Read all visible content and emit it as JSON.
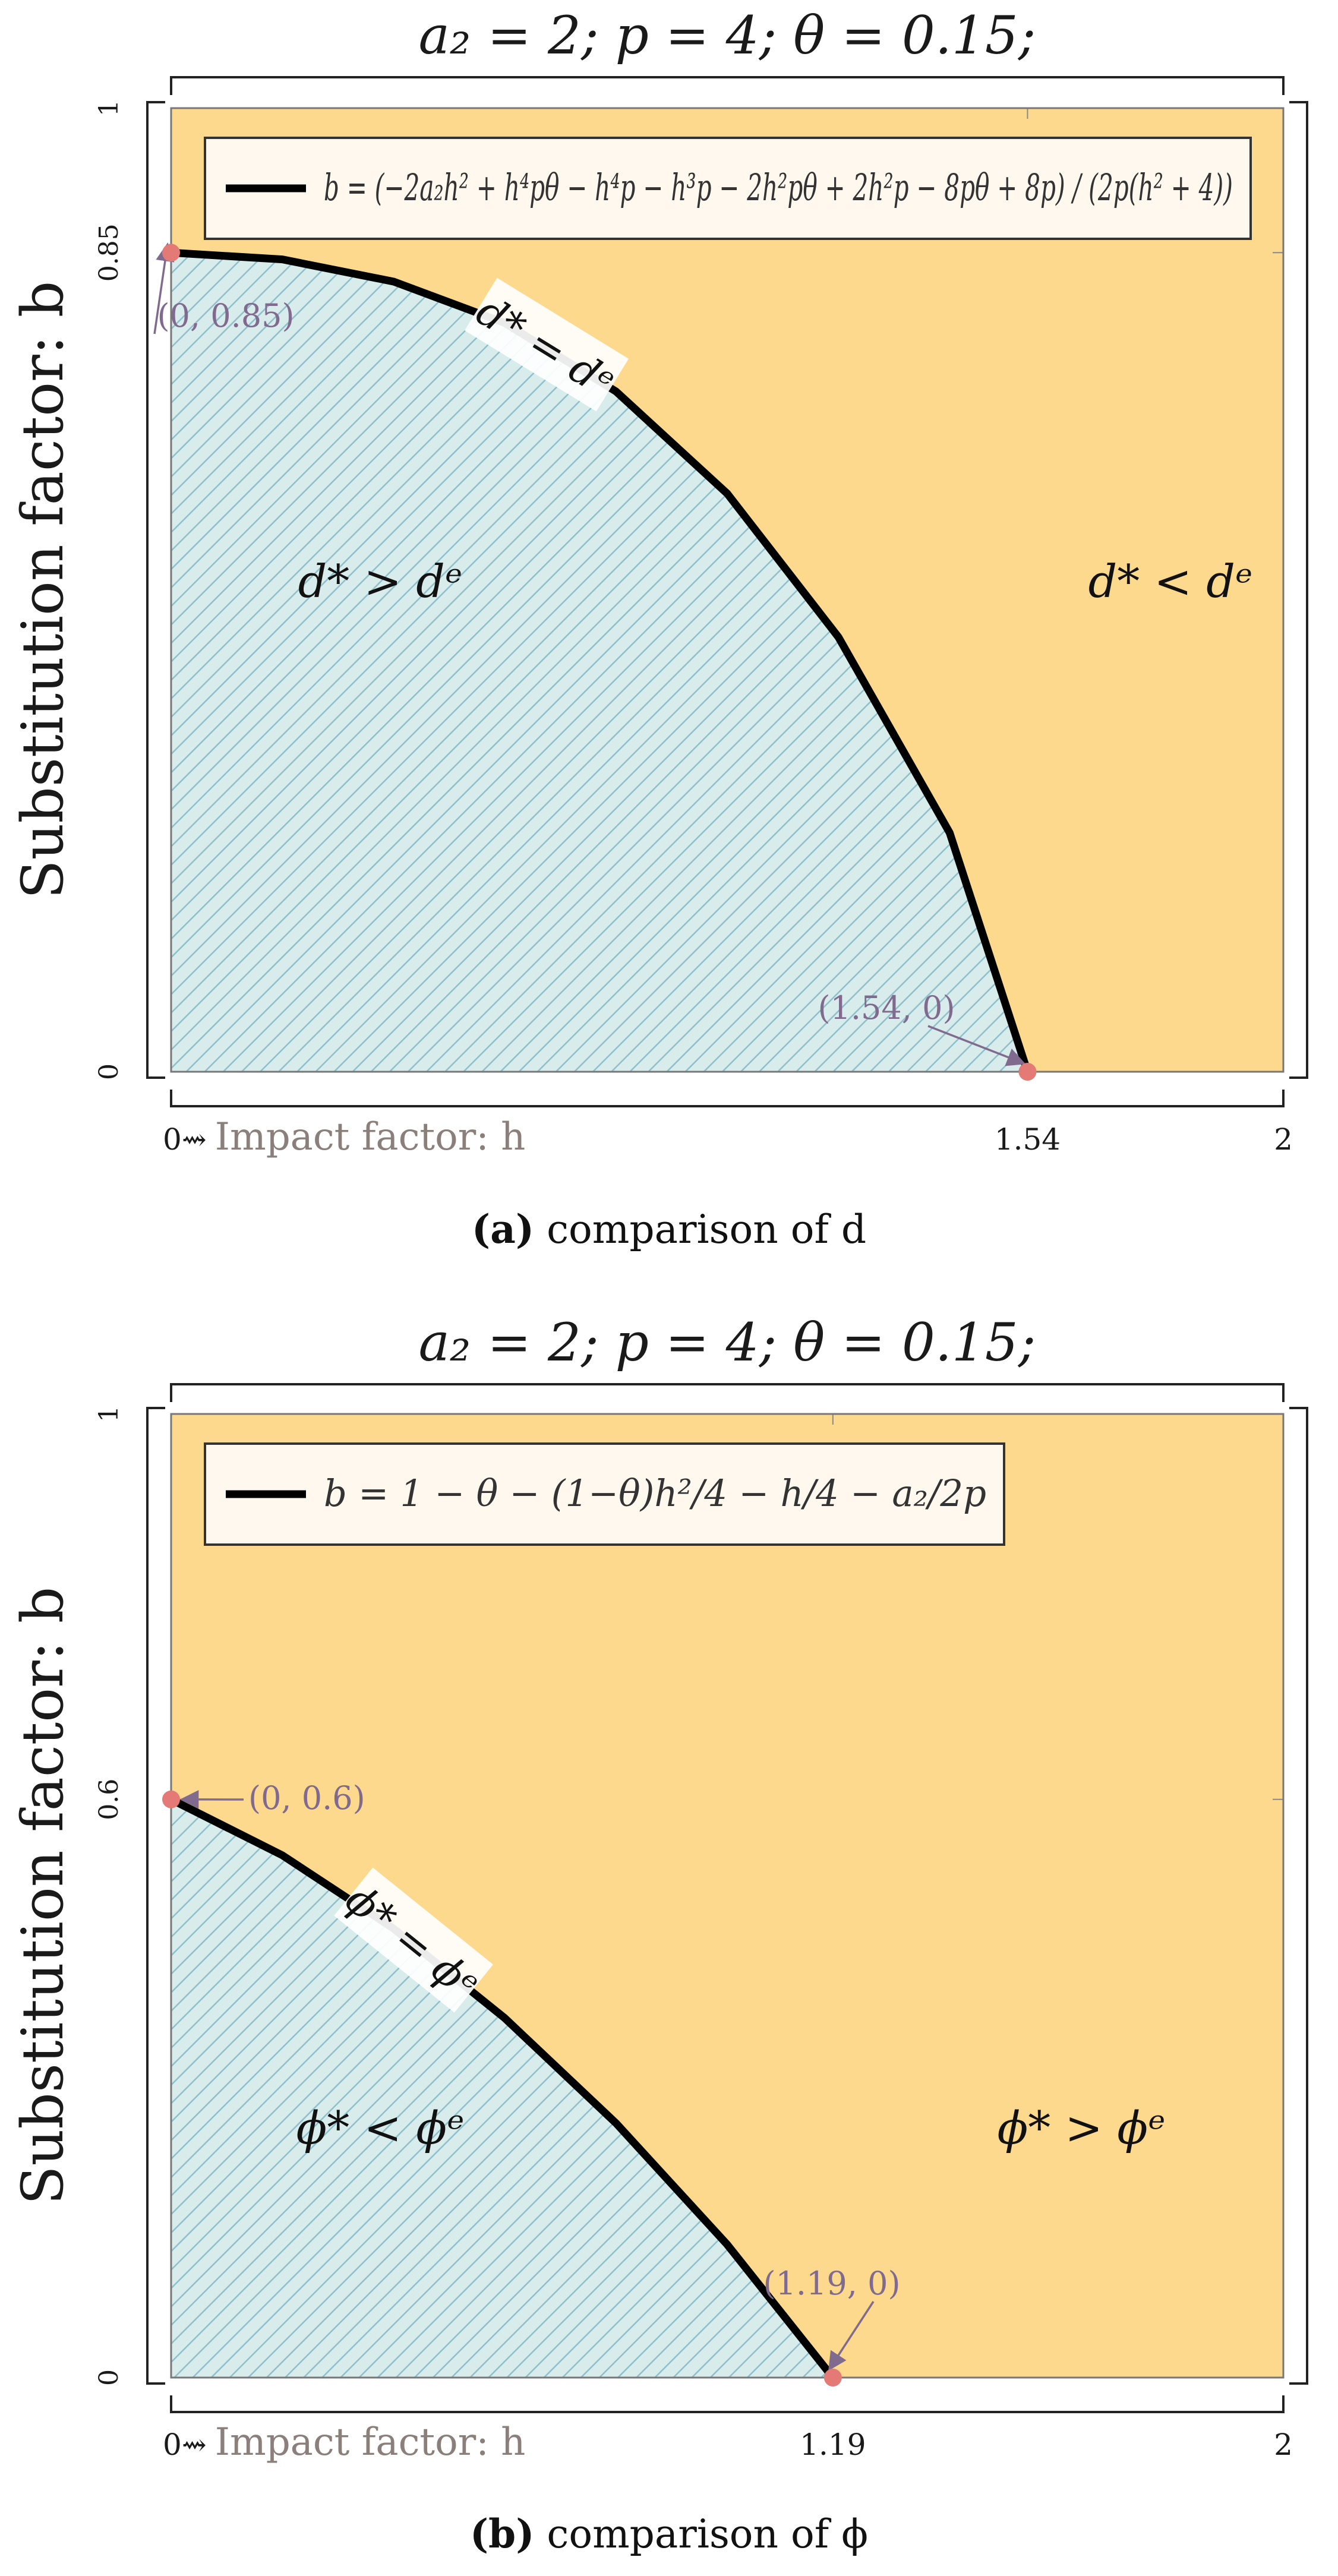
{
  "chart_data": [
    {
      "type": "area",
      "title": "a₂ = 2; p = 4; θ = 0.15;",
      "xlabel": "Impact factor: h",
      "xlabel_prefix": "0⇝",
      "ylabel": "Substitution factor: b",
      "xlim": [
        0,
        2
      ],
      "ylim": [
        0,
        1
      ],
      "x_ticks": [
        "0",
        "1.54",
        "2"
      ],
      "y_ticks": [
        "0",
        "0.85",
        "1"
      ],
      "legend": "b = (−2a₂h² + h⁴pθ − h⁴p − h³p − 2h²pθ + 2h²p − 8pθ + 8p) / (2p(h² + 4))",
      "series": [
        {
          "name": "b",
          "x": [
            0,
            0.2,
            0.4,
            0.6,
            0.8,
            1.0,
            1.2,
            1.4,
            1.54
          ],
          "values": [
            0.85,
            0.843,
            0.82,
            0.777,
            0.706,
            0.6,
            0.451,
            0.248,
            0
          ]
        }
      ],
      "points": [
        {
          "label": "(0, 0.85)",
          "x": 0,
          "y": 0.85
        },
        {
          "label": "(1.54, 0)",
          "x": 1.54,
          "y": 0
        }
      ],
      "curve_label": "d* = dᵉ",
      "regions": {
        "below": "d* > dᵉ",
        "above": "d* < dᵉ"
      },
      "caption_letter": "(a)",
      "caption_text": " comparison of d",
      "colors": {
        "above": "#fcd98c",
        "below": "#d8ecec",
        "hatch": "#8fbfcb",
        "curve": "#000000",
        "point": "#e47a76"
      }
    },
    {
      "type": "area",
      "title": "a₂ = 2; p = 4; θ = 0.15;",
      "xlabel": "Impact factor: h",
      "xlabel_prefix": "0⇝",
      "ylabel": "Substitution factor: b",
      "xlim": [
        0,
        2
      ],
      "ylim": [
        0,
        1
      ],
      "x_ticks": [
        "0",
        "1.19",
        "2"
      ],
      "y_ticks": [
        "0",
        "0.6",
        "1"
      ],
      "legend": "b = 1 − θ − (1−θ)h²/4 − h/4 − a₂/2p",
      "series": [
        {
          "name": "b",
          "x": [
            0,
            0.2,
            0.4,
            0.6,
            0.8,
            1.0,
            1.19
          ],
          "values": [
            0.6,
            0.542,
            0.466,
            0.373,
            0.264,
            0.138,
            0
          ]
        }
      ],
      "points": [
        {
          "label": "(0, 0.6)",
          "x": 0,
          "y": 0.6
        },
        {
          "label": "(1.19, 0)",
          "x": 1.19,
          "y": 0
        }
      ],
      "curve_label": "ϕ* = ϕᵉ",
      "regions": {
        "below": "ϕ* < ϕᵉ",
        "above": "ϕ* > ϕᵉ"
      },
      "caption_letter": "(b)",
      "caption_text": " comparison of ϕ",
      "colors": {
        "above": "#fcd98c",
        "below": "#d8ecec",
        "hatch": "#8fbfcb",
        "curve": "#000000",
        "point": "#e47a76"
      }
    }
  ]
}
